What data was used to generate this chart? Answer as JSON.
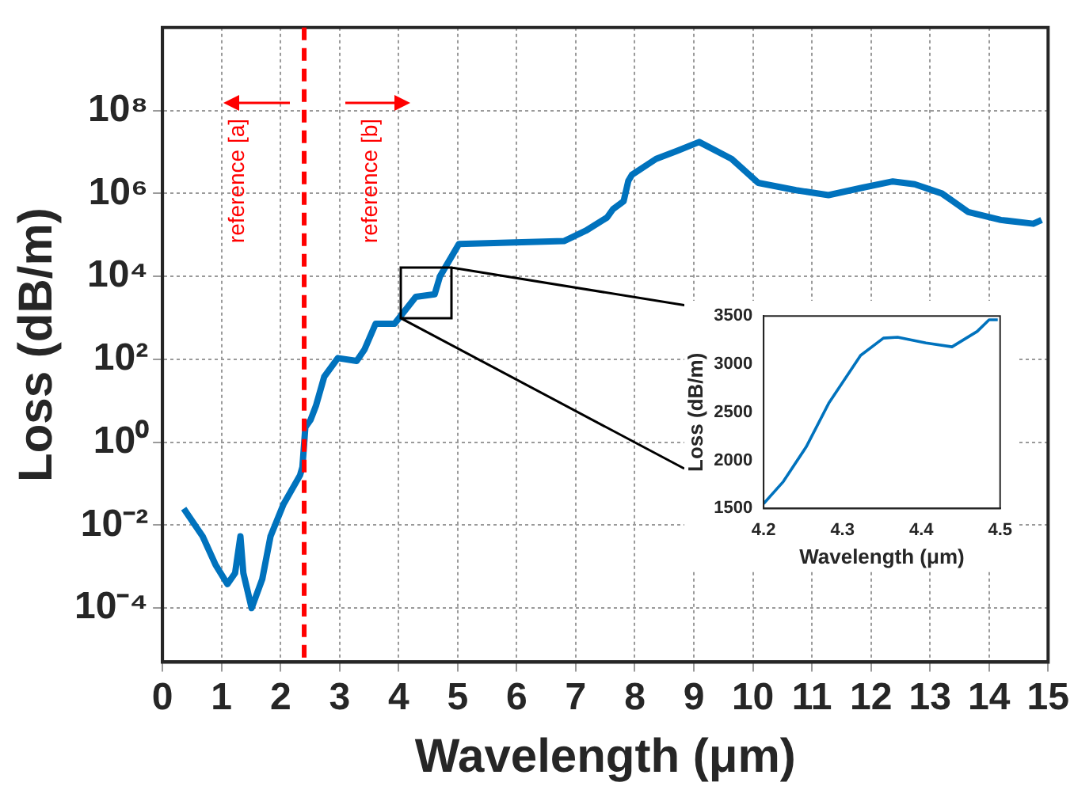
{
  "chart_data": [
    {
      "type": "line",
      "xlabel": "Wavelength (μm)",
      "ylabel": "Loss (dB/m)",
      "log": "y",
      "grid": true,
      "marker": "none",
      "line_style": "solid",
      "xlim": [
        0,
        15
      ],
      "xticks": [
        0,
        1,
        2,
        3,
        4,
        5,
        6,
        7,
        8,
        9,
        10,
        11,
        12,
        13,
        14,
        15
      ],
      "ylim": [
        5e-06,
        10000000000.0
      ],
      "yticks": [
        {
          "value": 0.0001,
          "label": "10⁻⁴"
        },
        {
          "value": 0.01,
          "label": "10⁻²"
        },
        {
          "value": 1,
          "label": "10⁰"
        },
        {
          "value": 100,
          "label": "10²"
        },
        {
          "value": 10000,
          "label": "10⁴"
        },
        {
          "value": 1000000,
          "label": "10⁶"
        },
        {
          "value": 100000000,
          "label": "10⁸"
        }
      ],
      "x": [
        0.36,
        0.68,
        0.9,
        1.1,
        1.23,
        1.32,
        1.37,
        1.51,
        1.69,
        1.83,
        2.05,
        2.33,
        2.37,
        2.42,
        2.51,
        2.6,
        2.74,
        2.97,
        3.29,
        3.42,
        3.61,
        3.93,
        4.29,
        4.61,
        4.7,
        5.02,
        6.8,
        7.17,
        7.53,
        7.63,
        7.81,
        7.89,
        7.95,
        8.36,
        8.72,
        9.09,
        9.64,
        10.09,
        10.73,
        11.28,
        11.83,
        12.37,
        12.74,
        13.2,
        13.65,
        14.2,
        14.75,
        14.89
      ],
      "series": [
        {
          "color": "#0072bd",
          "values": [
            0.025,
            0.0054,
            0.0011,
            0.00038,
            0.0007,
            0.0054,
            0.0007,
            0.0001,
            0.0005,
            0.0054,
            0.032,
            0.16,
            0.25,
            2.3,
            3.5,
            7.6,
            38,
            107,
            91,
            170,
            720,
            720,
            3200,
            3700,
            10000,
            60000,
            71000,
            126000,
            263000,
            417000,
            646000,
            2000000,
            2800000,
            6800000,
            10700000,
            17400000,
            6800000,
            1800000,
            1200000,
            910000,
            1350000,
            1950000,
            1660000,
            1000000,
            355000,
            229000,
            186000,
            229000
          ]
        }
      ],
      "ref_lines": [
        {
          "axis": "x",
          "value": 2.4,
          "color": "#ff0000",
          "line_style": "dashed"
        }
      ],
      "annotations": [
        "reference [a]",
        "reference [b]"
      ]
    },
    {
      "type": "line",
      "xlabel": "Wavelength (μm)",
      "ylabel": "Loss (dB/m)",
      "grid": false,
      "marker": "none",
      "line_style": "solid",
      "xlim": [
        4.2,
        4.5
      ],
      "xticks": [
        4.2,
        4.3,
        4.4,
        4.5
      ],
      "ylim": [
        1500,
        3500
      ],
      "yticks": [
        1500,
        2000,
        2500,
        3000,
        3500
      ],
      "x": [
        4.2,
        4.225,
        4.254,
        4.283,
        4.323,
        4.352,
        4.37,
        4.406,
        4.439,
        4.471,
        4.486,
        4.497
      ],
      "series": [
        {
          "color": "#0072bd",
          "values": [
            1550,
            1780,
            2140,
            2600,
            3090,
            3270,
            3280,
            3220,
            3180,
            3340,
            3460,
            3460
          ]
        }
      ]
    }
  ]
}
